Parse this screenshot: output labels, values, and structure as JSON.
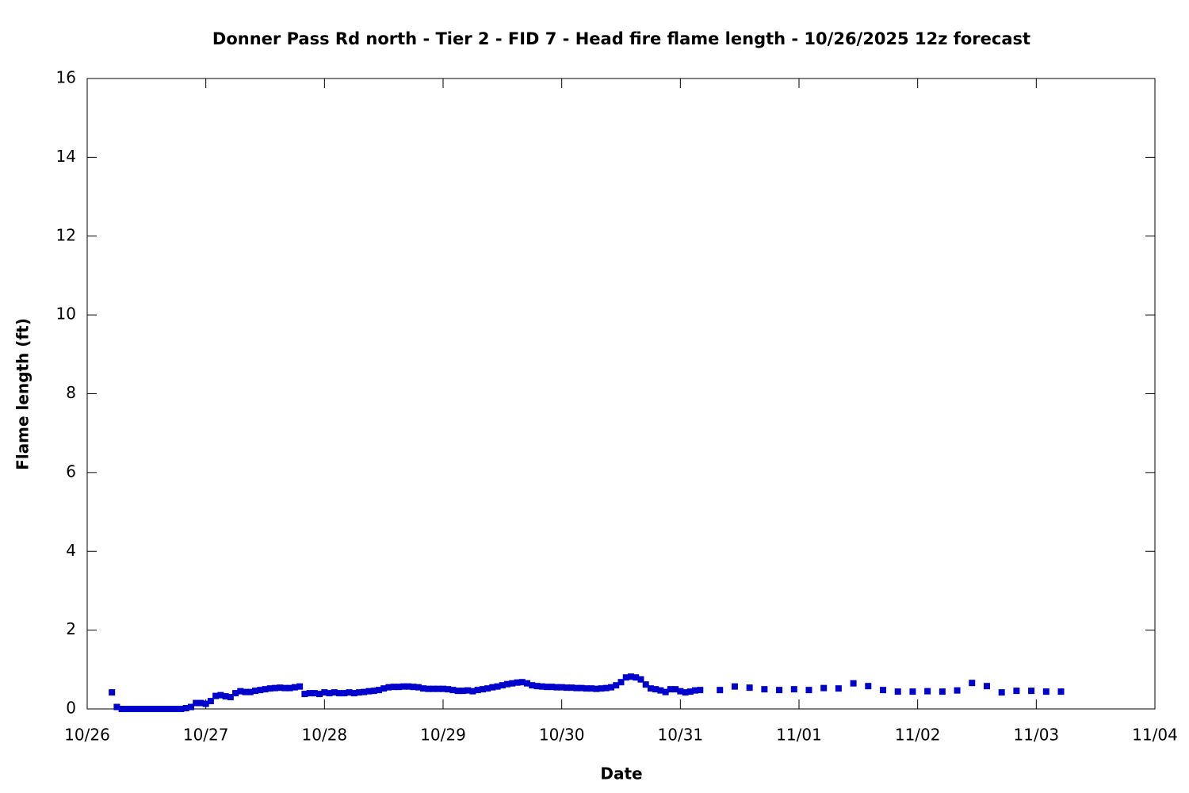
{
  "chart_data": {
    "type": "scatter",
    "title": "Donner Pass Rd north - Tier 2 - FID 7 - Head fire flame length - 10/26/2025 12z forecast",
    "x_label": "Date",
    "y_label": "Flame length (ft)",
    "series": [
      {
        "color": "#0000cd",
        "x": [
          5,
          6,
          7,
          8,
          9,
          10,
          11,
          12,
          13,
          14,
          15,
          16,
          17,
          18,
          19,
          20,
          21,
          22,
          23,
          24,
          25,
          26,
          27,
          28,
          29,
          30,
          31,
          32,
          33,
          34,
          35,
          36,
          37,
          38,
          39,
          40,
          41,
          42,
          43,
          44,
          45,
          46,
          47,
          48,
          49,
          50,
          51,
          52,
          53,
          54,
          55,
          56,
          57,
          58,
          59,
          60,
          61,
          62,
          63,
          64,
          65,
          66,
          67,
          68,
          69,
          70,
          71,
          72,
          73,
          74,
          75,
          76,
          77,
          78,
          79,
          80,
          81,
          82,
          83,
          84,
          85,
          86,
          87,
          88,
          89,
          90,
          91,
          92,
          93,
          94,
          95,
          96,
          97,
          98,
          99,
          100,
          101,
          102,
          103,
          104,
          105,
          106,
          107,
          108,
          109,
          110,
          111,
          112,
          113,
          114,
          115,
          116,
          117,
          118,
          119,
          120,
          121,
          122,
          123,
          124,
          128,
          131,
          134,
          137,
          140,
          143,
          146,
          149,
          152,
          155,
          158,
          161,
          164,
          167,
          170,
          173,
          176,
          179,
          182,
          185,
          188,
          191,
          194,
          197
        ],
        "values": [
          0.42,
          0.05,
          0,
          0,
          0,
          0,
          0,
          0,
          0,
          0,
          0,
          0,
          0,
          0,
          0,
          0.02,
          0.05,
          0.15,
          0.15,
          0.13,
          0.2,
          0.33,
          0.35,
          0.32,
          0.3,
          0.4,
          0.45,
          0.43,
          0.43,
          0.46,
          0.48,
          0.5,
          0.52,
          0.53,
          0.54,
          0.53,
          0.53,
          0.55,
          0.57,
          0.38,
          0.4,
          0.4,
          0.38,
          0.42,
          0.4,
          0.42,
          0.4,
          0.4,
          0.42,
          0.4,
          0.42,
          0.43,
          0.45,
          0.46,
          0.48,
          0.52,
          0.55,
          0.56,
          0.56,
          0.57,
          0.57,
          0.56,
          0.55,
          0.52,
          0.51,
          0.51,
          0.51,
          0.51,
          0.5,
          0.48,
          0.46,
          0.46,
          0.47,
          0.45,
          0.48,
          0.5,
          0.52,
          0.55,
          0.57,
          0.6,
          0.63,
          0.65,
          0.67,
          0.68,
          0.65,
          0.6,
          0.58,
          0.57,
          0.56,
          0.56,
          0.55,
          0.55,
          0.54,
          0.54,
          0.53,
          0.53,
          0.52,
          0.52,
          0.51,
          0.52,
          0.53,
          0.55,
          0.6,
          0.68,
          0.8,
          0.82,
          0.8,
          0.75,
          0.62,
          0.52,
          0.5,
          0.47,
          0.43,
          0.5,
          0.5,
          0.45,
          0.42,
          0.44,
          0.47,
          0.48,
          0.48,
          0.57,
          0.54,
          0.5,
          0.48,
          0.5,
          0.48,
          0.53,
          0.52,
          0.65,
          0.58,
          0.48,
          0.44,
          0.44,
          0.45,
          0.44,
          0.47,
          0.66,
          0.58,
          0.42,
          0.46,
          0.46,
          0.44,
          0.44
        ]
      }
    ],
    "xlim": [
      0,
      216
    ],
    "xticks": [
      {
        "value": 0,
        "label": "10/26"
      },
      {
        "value": 24,
        "label": "10/27"
      },
      {
        "value": 48,
        "label": "10/28"
      },
      {
        "value": 72,
        "label": "10/29"
      },
      {
        "value": 96,
        "label": "10/30"
      },
      {
        "value": 120,
        "label": "10/31"
      },
      {
        "value": 144,
        "label": "11/01"
      },
      {
        "value": 168,
        "label": "11/02"
      },
      {
        "value": 192,
        "label": "11/03"
      },
      {
        "value": 216,
        "label": "11/04"
      }
    ],
    "ylim": [
      0,
      16
    ],
    "yticks": [
      0,
      2,
      4,
      6,
      8,
      10,
      12,
      14,
      16
    ],
    "grid": false
  }
}
